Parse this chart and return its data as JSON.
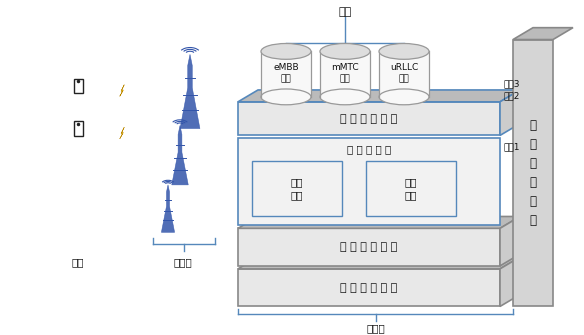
{
  "labels": {
    "app": "应用",
    "embb": "eMBB\n业务",
    "mmtc": "mMTC\n业务",
    "urllc": "uRLLC\n业务",
    "capability": "能 力 开 放 平 台",
    "slice3": "切片3",
    "slice2": "切片2",
    "slice1": "切片1",
    "signaling": "信 令 与 数 据",
    "edge": "边缘\n功能",
    "network": "网络\n功能",
    "virtual": "虚 拟 基 础 设 施",
    "physical": "物 理 基 础 设 施",
    "control": "控\n制\n管\n理\n功\n能",
    "terminal": "终端",
    "access": "接入网",
    "core": "核心网"
  },
  "colors": {
    "bg_color": "#ffffff",
    "box_fill": "#f2f2f2",
    "box_border": "#999999",
    "layer_fill": "#e8e8e8",
    "layer_border": "#888888",
    "slice_border": "#5588bb",
    "cylinder_fill": "#f8f8f8",
    "cylinder_border": "#999999",
    "control_fill": "#d5d5d5",
    "control_border": "#888888",
    "tower_color": "#3355aa",
    "lightning_color": "#ffcc00",
    "phone_color": "#222222",
    "bracket_color": "#5588bb",
    "text_color": "#111111",
    "dark_side": "#bbbbbb",
    "cap_fill": "#dddddd",
    "side_face": "#cccccc"
  }
}
